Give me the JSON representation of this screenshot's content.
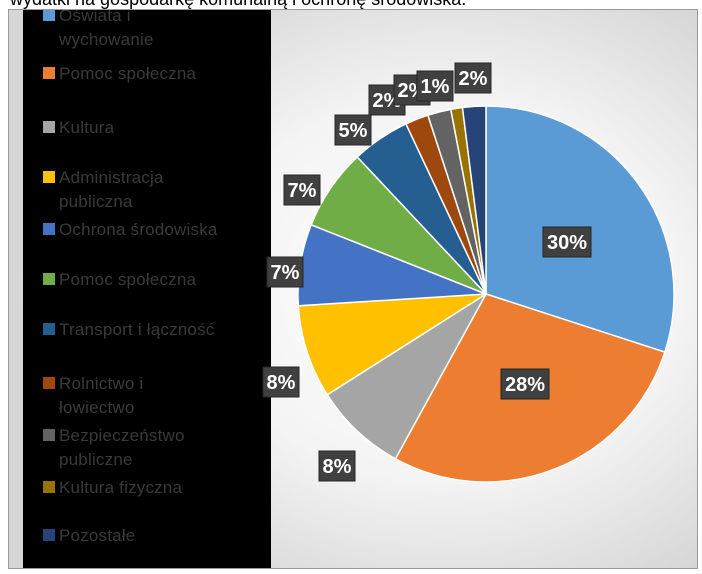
{
  "caption": "wydatki na gospodarkę komunalną i ochronę środowiska.",
  "chart_data": {
    "type": "pie",
    "title": "",
    "legend_placement": "left",
    "slices": [
      {
        "name": "Oświata i wychowanie",
        "value": 30,
        "label": "30%",
        "color": "#5b9bd5"
      },
      {
        "name": "Pomoc społeczna",
        "value": 28,
        "label": "28%",
        "color": "#ed7d31"
      },
      {
        "name": "Kultura",
        "value": 8,
        "label": "8%",
        "color": "#a5a5a5"
      },
      {
        "name": "Administracja publiczna",
        "value": 8,
        "label": "8%",
        "color": "#ffc000"
      },
      {
        "name": "Ochrona środowiska",
        "value": 7,
        "label": "7%",
        "color": "#4472c4"
      },
      {
        "name": "Pomoc społeczna",
        "value": 7,
        "label": "7%",
        "color": "#70ad47"
      },
      {
        "name": "Transport i łączność",
        "value": 5,
        "label": "5%",
        "color": "#255e91"
      },
      {
        "name": "Rolnictwo i łowiectwo",
        "value": 2,
        "label": "2%",
        "color": "#9e480e"
      },
      {
        "name": "Bezpieczeństwo publiczne",
        "value": 2,
        "label": "2%",
        "color": "#636363"
      },
      {
        "name": "Kultura fizyczna",
        "value": 1,
        "label": "1%",
        "color": "#997300"
      },
      {
        "name": "Pozostałe",
        "value": 2,
        "label": "2%",
        "color": "#264478"
      }
    ]
  },
  "legend": [
    {
      "line1": "Oświata i",
      "line2": "wychowanie"
    },
    {
      "line1": "Pomoc społeczna",
      "line2": ""
    },
    {
      "line1": "Kultura",
      "line2": ""
    },
    {
      "line1": "Administracja",
      "line2": "publiczna"
    },
    {
      "line1": "Ochrona środowiska",
      "line2": ""
    },
    {
      "line1": "Pomoc społeczna",
      "line2": ""
    },
    {
      "line1": "Transport i łączność",
      "line2": ""
    },
    {
      "line1": "Rolnictwo i",
      "line2": "łowiectwo"
    },
    {
      "line1": "Bezpieczeństwo",
      "line2": "publiczne"
    },
    {
      "line1": "Kultura fizyczna",
      "line2": ""
    },
    {
      "line1": "Pozostałe",
      "line2": ""
    }
  ]
}
